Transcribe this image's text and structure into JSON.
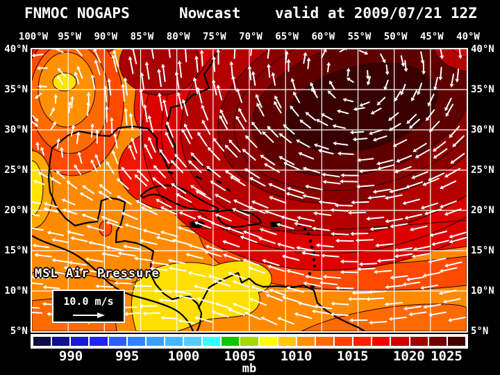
{
  "header": {
    "model": "FNMOC NOGAPS",
    "product": "Nowcast",
    "valid_text": "valid at 2009/07/21 12Z"
  },
  "axes": {
    "lon_labels": [
      "100°W",
      "95°W",
      "90°W",
      "85°W",
      "80°W",
      "75°W",
      "70°W",
      "65°W",
      "60°W",
      "55°W",
      "50°W",
      "45°W",
      "40°W"
    ],
    "lat_labels": [
      "40°N",
      "35°N",
      "30°N",
      "25°N",
      "20°N",
      "15°N",
      "10°N",
      "5°N"
    ]
  },
  "map_overlay": {
    "field_label": "MSL Air Pressure",
    "vector_scale_label": "10.0 m/s"
  },
  "colorbar": {
    "unit_label": "mb",
    "tick_labels": [
      "990",
      "995",
      "1000",
      "1005",
      "1010",
      "1015",
      "1020",
      "1025"
    ],
    "cell_colors": [
      "#0d0d3f",
      "#11118c",
      "#1a1ad1",
      "#2222ff",
      "#2e5cff",
      "#3380ff",
      "#3aa0ff",
      "#44b8ff",
      "#55ccff",
      "#33ffff",
      "#11c400",
      "#a6d900",
      "#ffff00",
      "#ffc800",
      "#ff9000",
      "#ff6a00",
      "#ff4000",
      "#ff1e00",
      "#f50000",
      "#cf0000",
      "#a10000",
      "#6f0000",
      "#400000"
    ]
  },
  "palette": {
    "base_orange": "#ff8a00",
    "deep_orange": "#ff6a00",
    "orange_red": "#ff4a00",
    "red": "#f01500",
    "red_band1": "#dd0000",
    "red_band2": "#b40000",
    "red_band3": "#8a0000",
    "red_band4": "#5e0000",
    "red_band5": "#380000",
    "inland_dark_red": "#a80000",
    "ring_orange": "#ff9100",
    "low_yellow": "#ffe400",
    "south_yellow": "#ffdf00",
    "gold": "#ffa800",
    "contour": "#2a0000",
    "coastline": "#000000",
    "grid": "#ffffff",
    "arrow": "#ffffff"
  },
  "chart_data": {
    "type": "heatmap",
    "title": "FNMOC NOGAPS Nowcast valid at 2009/07/21 12Z",
    "variable": "MSL Air Pressure",
    "unit": "mb",
    "lon_range_deg_west": [
      100,
      40
    ],
    "lat_range_deg_north": [
      5,
      40
    ],
    "grid_interval_deg": 5,
    "colorbar_ticks_mb": [
      990,
      995,
      1000,
      1005,
      1010,
      1015,
      1020,
      1025
    ],
    "vector_overlay": {
      "type": "wind vectors",
      "reference_speed": "10.0 m/s"
    },
    "features": [
      {
        "name": "subtropical high (dark maroon core)",
        "approx_lon_w": 55,
        "approx_lat_n": 34,
        "approx_pressure_mb": 1026
      },
      {
        "name": "low over south-central United States (yellow core)",
        "approx_lon_w": 95,
        "approx_lat_n": 36,
        "approx_pressure_mb": 1008
      },
      {
        "name": "thermal low along west Mexico edge (yellow)",
        "approx_lon_w": 100,
        "approx_lat_n": 23,
        "approx_pressure_mb": 1009
      },
      {
        "name": "low over SW Caribbean / Panama (yellow band)",
        "approx_lon_w": 80,
        "approx_lat_n": 10,
        "approx_pressure_mb": 1009
      },
      {
        "name": "trade easterlies",
        "description": "westward wind arrows across the tropical Atlantic and Caribbean, anticyclonic circulation around the Atlantic high"
      }
    ]
  }
}
